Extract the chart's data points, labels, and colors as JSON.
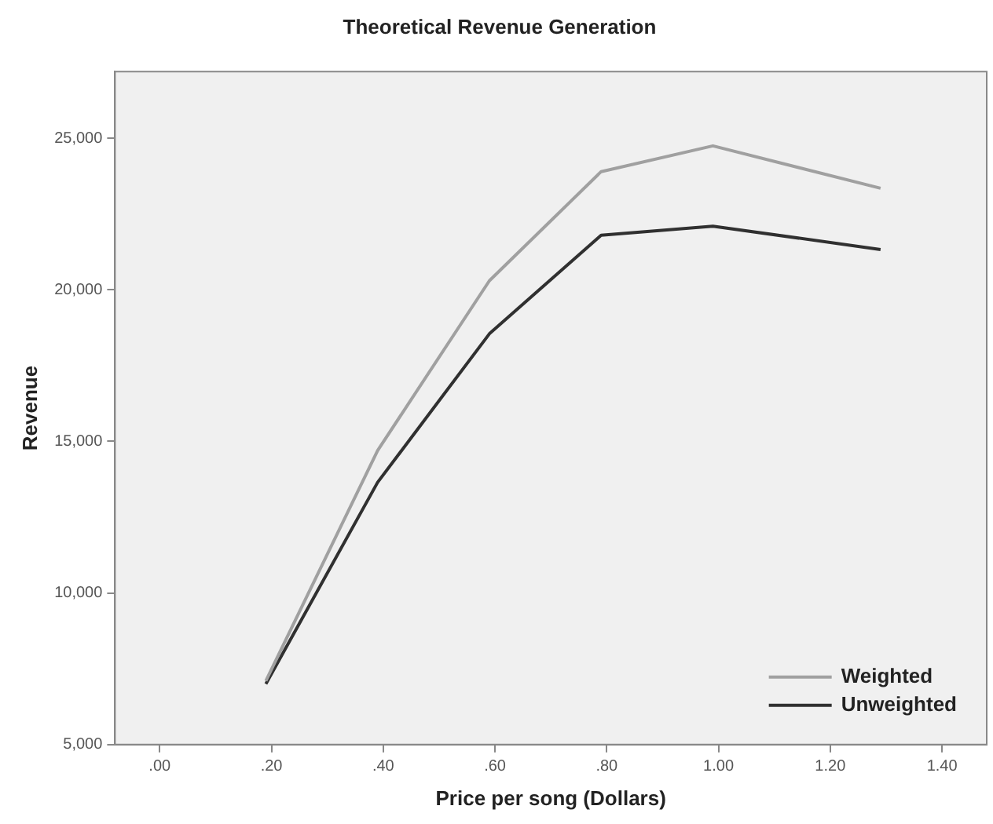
{
  "chart_data": {
    "type": "line",
    "title": "Theoretical Revenue Generation",
    "xlabel": "Price per song (Dollars)",
    "ylabel": "Revenue",
    "x": [
      0.19,
      0.39,
      0.59,
      0.79,
      0.99,
      1.29
    ],
    "series": [
      {
        "name": "Weighted",
        "color": "#a0a0a0",
        "values": [
          7100,
          14700,
          20300,
          23900,
          24750,
          23350
        ]
      },
      {
        "name": "Unweighted",
        "color": "#303030",
        "values": [
          7000,
          13650,
          18550,
          21800,
          22100,
          21330
        ]
      }
    ],
    "xlim": [
      -0.08,
      1.48
    ],
    "xticks": [
      {
        "value": 0,
        "label": ".00"
      },
      {
        "value": 0.2,
        "label": ".20"
      },
      {
        "value": 0.4,
        "label": ".40"
      },
      {
        "value": 0.6,
        "label": ".60"
      },
      {
        "value": 0.8,
        "label": ".80"
      },
      {
        "value": 1.0,
        "label": "1.00"
      },
      {
        "value": 1.2,
        "label": "1.20"
      },
      {
        "value": 1.4,
        "label": "1.40"
      }
    ],
    "ylim": [
      5000,
      27200
    ],
    "yticks": [
      {
        "value": 5000,
        "label": "5,000"
      },
      {
        "value": 10000,
        "label": "10,000"
      },
      {
        "value": 15000,
        "label": "15,000"
      },
      {
        "value": 20000,
        "label": "20,000"
      },
      {
        "value": 25000,
        "label": "25,000"
      }
    ],
    "grid": false,
    "legend": "bottom right",
    "marker": "none",
    "line_style": "solid"
  }
}
